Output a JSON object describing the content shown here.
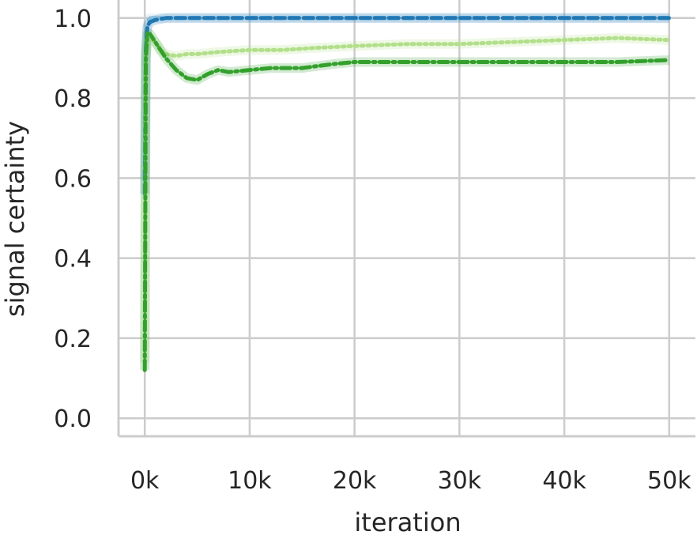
{
  "chart_data": {
    "type": "line",
    "title": "",
    "xlabel": "iteration",
    "ylabel": "signal certainty",
    "xlim": [
      -2500,
      52500
    ],
    "ylim": [
      -0.045,
      1.045
    ],
    "x_ticks": [
      0,
      10000,
      20000,
      30000,
      40000,
      50000
    ],
    "x_tick_labels": [
      "0k",
      "10k",
      "20k",
      "30k",
      "40k",
      "50k"
    ],
    "y_ticks": [
      0.0,
      0.2,
      0.4,
      0.6,
      0.8,
      1.0
    ],
    "y_tick_labels": [
      "0.0",
      "0.2",
      "0.4",
      "0.6",
      "0.8",
      "1.0"
    ],
    "grid": true,
    "legend": "none",
    "series": [
      {
        "color": "#a6cee3",
        "dash": "long-dash",
        "x": [
          0,
          150,
          300,
          500,
          1000,
          2000,
          5000,
          10000,
          20000,
          30000,
          40000,
          50000
        ],
        "y": [
          0.6,
          0.95,
          0.99,
          1.0,
          1.0,
          1.0,
          1.0,
          1.0,
          1.0,
          1.0,
          1.0,
          1.0
        ]
      },
      {
        "color": "#1f78b4",
        "dash": "dash",
        "x": [
          0,
          100,
          250,
          500,
          1000,
          2000,
          5000,
          10000,
          20000,
          30000,
          40000,
          50000
        ],
        "y": [
          0.56,
          0.92,
          0.98,
          0.99,
          0.995,
          1.0,
          1.0,
          1.0,
          1.0,
          1.0,
          1.0,
          1.0
        ]
      },
      {
        "color": "#b2df8a",
        "dash": "dot",
        "x": [
          0,
          100,
          250,
          500,
          1000,
          1500,
          2000,
          3000,
          4000,
          5000,
          7000,
          10000,
          13000,
          16000,
          20000,
          25000,
          30000,
          35000,
          40000,
          45000,
          50000
        ],
        "y": [
          0.14,
          0.9,
          0.93,
          0.95,
          0.94,
          0.92,
          0.91,
          0.905,
          0.91,
          0.91,
          0.915,
          0.92,
          0.92,
          0.925,
          0.93,
          0.935,
          0.935,
          0.94,
          0.945,
          0.95,
          0.945
        ]
      },
      {
        "color": "#33a02c",
        "dash": "dash-dot",
        "x": [
          0,
          100,
          250,
          500,
          1000,
          1500,
          2000,
          3000,
          4000,
          5000,
          6000,
          7000,
          8000,
          10000,
          12000,
          15000,
          18000,
          20000,
          25000,
          30000,
          35000,
          40000,
          45000,
          50000
        ],
        "y": [
          0.12,
          0.9,
          0.96,
          0.96,
          0.94,
          0.92,
          0.9,
          0.87,
          0.85,
          0.845,
          0.86,
          0.87,
          0.865,
          0.87,
          0.875,
          0.875,
          0.885,
          0.89,
          0.89,
          0.89,
          0.89,
          0.89,
          0.89,
          0.895
        ]
      }
    ]
  }
}
